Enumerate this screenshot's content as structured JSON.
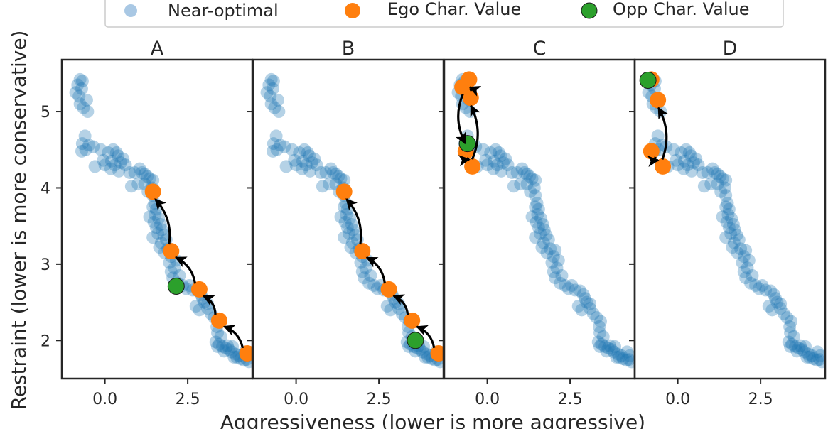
{
  "chart_data": {
    "type": "scatter",
    "xlabel": "Aggressiveness (lower is more aggressive)",
    "ylabel": "Restraint (lower is more conservative)",
    "xlim": [
      -1.3,
      4.45
    ],
    "ylim": [
      1.5,
      5.68
    ],
    "x_ticks": [
      0.0,
      2.5
    ],
    "x_tick_labels": [
      "0.0",
      "2.5"
    ],
    "y_ticks": [
      2,
      3,
      4,
      5
    ],
    "y_tick_labels": [
      "2",
      "3",
      "4",
      "5"
    ],
    "legend": {
      "placement": "top-center",
      "entries": [
        {
          "label": "Near-optimal",
          "color": "#a9c8e4"
        },
        {
          "label": "Ego Char. Value",
          "color": "#ff7f0e"
        },
        {
          "label": "Opp Char. Value",
          "color": "#2ca02c"
        }
      ]
    },
    "colors": {
      "near": "#1f77b4",
      "ego": "#ff7f0e",
      "opp": "#2ca02c",
      "arrow": "#000000"
    },
    "near_optimal": [
      [
        -0.75,
        5.42
      ],
      [
        -0.68,
        5.4
      ],
      [
        -0.82,
        5.35
      ],
      [
        -0.7,
        5.3
      ],
      [
        -0.88,
        5.25
      ],
      [
        -0.78,
        5.2
      ],
      [
        -0.55,
        5.15
      ],
      [
        -0.75,
        5.1
      ],
      [
        -0.65,
        5.05
      ],
      [
        -0.52,
        5.0
      ],
      [
        -0.6,
        4.68
      ],
      [
        -0.68,
        4.58
      ],
      [
        -0.48,
        4.56
      ],
      [
        -0.58,
        4.5
      ],
      [
        -0.7,
        4.48
      ],
      [
        -0.35,
        4.54
      ],
      [
        -0.12,
        4.5
      ],
      [
        0.25,
        4.5
      ],
      [
        0.35,
        4.46
      ],
      [
        0.1,
        4.46
      ],
      [
        0.4,
        4.42
      ],
      [
        0.55,
        4.38
      ],
      [
        -0.05,
        4.36
      ],
      [
        0.2,
        4.35
      ],
      [
        0.48,
        4.33
      ],
      [
        0.3,
        4.3
      ],
      [
        0.62,
        4.3
      ],
      [
        -0.3,
        4.28
      ],
      [
        0.0,
        4.3
      ],
      [
        0.18,
        4.25
      ],
      [
        0.42,
        4.22
      ],
      [
        1.05,
        4.25
      ],
      [
        1.12,
        4.2
      ],
      [
        1.2,
        4.18
      ],
      [
        0.75,
        4.2
      ],
      [
        0.9,
        4.2
      ],
      [
        1.28,
        4.15
      ],
      [
        1.35,
        4.12
      ],
      [
        1.45,
        4.1
      ],
      [
        1.0,
        4.05
      ],
      [
        1.2,
        4.05
      ],
      [
        0.8,
        4.02
      ],
      [
        1.42,
        4.0
      ],
      [
        1.3,
        3.95
      ],
      [
        1.45,
        3.9
      ],
      [
        1.5,
        3.8
      ],
      [
        1.45,
        3.75
      ],
      [
        1.55,
        3.72
      ],
      [
        1.52,
        3.65
      ],
      [
        1.35,
        3.62
      ],
      [
        1.62,
        3.6
      ],
      [
        1.48,
        3.55
      ],
      [
        1.68,
        3.52
      ],
      [
        1.55,
        3.48
      ],
      [
        1.72,
        3.45
      ],
      [
        1.6,
        3.4
      ],
      [
        1.78,
        3.38
      ],
      [
        1.45,
        3.35
      ],
      [
        1.85,
        3.32
      ],
      [
        1.7,
        3.28
      ],
      [
        1.65,
        3.22
      ],
      [
        1.9,
        3.2
      ],
      [
        1.8,
        3.15
      ],
      [
        2.05,
        3.18
      ],
      [
        2.0,
        3.1
      ],
      [
        2.15,
        3.05
      ],
      [
        1.95,
        3.02
      ],
      [
        2.1,
        2.95
      ],
      [
        2.0,
        2.9
      ],
      [
        2.25,
        2.85
      ],
      [
        2.05,
        2.82
      ],
      [
        2.2,
        2.75
      ],
      [
        2.35,
        2.72
      ],
      [
        2.45,
        2.68
      ],
      [
        2.55,
        2.72
      ],
      [
        2.65,
        2.66
      ],
      [
        2.8,
        2.65
      ],
      [
        2.9,
        2.6
      ],
      [
        2.95,
        2.55
      ],
      [
        3.0,
        2.5
      ],
      [
        3.1,
        2.48
      ],
      [
        2.75,
        2.45
      ],
      [
        2.85,
        2.4
      ],
      [
        3.1,
        2.42
      ],
      [
        3.2,
        2.35
      ],
      [
        3.3,
        2.3
      ],
      [
        3.42,
        2.25
      ],
      [
        3.38,
        2.18
      ],
      [
        3.4,
        2.1
      ],
      [
        3.5,
        2.05
      ],
      [
        3.35,
        1.98
      ],
      [
        3.45,
        1.95
      ],
      [
        3.55,
        1.92
      ],
      [
        3.65,
        1.9
      ],
      [
        3.75,
        1.88
      ],
      [
        3.82,
        1.85
      ],
      [
        3.95,
        1.82
      ],
      [
        4.05,
        1.8
      ],
      [
        3.98,
        1.78
      ],
      [
        4.1,
        1.76
      ],
      [
        4.2,
        1.74
      ],
      [
        4.28,
        1.75
      ],
      [
        4.35,
        1.72
      ],
      [
        4.3,
        1.8
      ],
      [
        4.22,
        1.85
      ],
      [
        3.9,
        1.78
      ],
      [
        3.7,
        1.93
      ],
      [
        3.6,
        1.86
      ],
      [
        3.4,
        1.92
      ],
      [
        3.85,
        1.92
      ]
    ],
    "panels": [
      {
        "title": "A",
        "ego": [
          [
            4.3,
            1.83
          ],
          [
            3.45,
            2.26
          ],
          [
            2.85,
            2.67
          ],
          [
            2.0,
            3.17
          ],
          [
            1.45,
            3.95
          ]
        ],
        "opp": [
          [
            2.15,
            2.71
          ]
        ],
        "arrows": [
          [
            [
              4.3,
              1.83
            ],
            [
              3.45,
              2.26
            ]
          ],
          [
            [
              3.45,
              2.26
            ],
            [
              2.85,
              2.67
            ]
          ],
          [
            [
              2.85,
              2.67
            ],
            [
              2.0,
              3.17
            ]
          ],
          [
            [
              2.0,
              3.17
            ],
            [
              1.45,
              3.95
            ]
          ]
        ]
      },
      {
        "title": "B",
        "ego": [
          [
            4.3,
            1.83
          ],
          [
            3.5,
            2.26
          ],
          [
            2.8,
            2.67
          ],
          [
            2.0,
            3.17
          ],
          [
            1.45,
            3.95
          ]
        ],
        "opp": [
          [
            3.6,
            2.0
          ]
        ],
        "arrows": [
          [
            [
              4.3,
              1.83
            ],
            [
              3.5,
              2.26
            ]
          ],
          [
            [
              3.5,
              2.26
            ],
            [
              2.8,
              2.67
            ]
          ],
          [
            [
              2.8,
              2.67
            ],
            [
              2.0,
              3.17
            ]
          ],
          [
            [
              2.0,
              3.17
            ],
            [
              1.45,
              3.95
            ]
          ]
        ]
      },
      {
        "title": "C",
        "ego": [
          [
            -0.75,
            5.32
          ],
          [
            -0.55,
            5.42
          ],
          [
            -0.5,
            5.18
          ],
          [
            -0.65,
            4.48
          ],
          [
            -0.45,
            4.28
          ]
        ],
        "opp": [
          [
            -0.6,
            4.58
          ]
        ],
        "arrows": [
          [
            [
              -0.75,
              5.32
            ],
            [
              -0.65,
              4.48
            ]
          ],
          [
            [
              -0.65,
              4.48
            ],
            [
              -0.45,
              4.28
            ]
          ],
          [
            [
              -0.45,
              4.28
            ],
            [
              -0.5,
              5.18
            ]
          ],
          [
            [
              -0.5,
              5.18
            ],
            [
              -0.55,
              5.42
            ]
          ]
        ]
      },
      {
        "title": "D",
        "ego": [
          [
            -0.8,
            5.42
          ],
          [
            -0.6,
            5.15
          ],
          [
            -0.8,
            4.48
          ],
          [
            -0.45,
            4.28
          ]
        ],
        "opp": [
          [
            -0.9,
            5.41
          ]
        ],
        "arrows": [
          [
            [
              -0.8,
              4.48
            ],
            [
              -0.45,
              4.28
            ]
          ],
          [
            [
              -0.45,
              4.28
            ],
            [
              -0.6,
              5.15
            ]
          ]
        ]
      }
    ]
  }
}
